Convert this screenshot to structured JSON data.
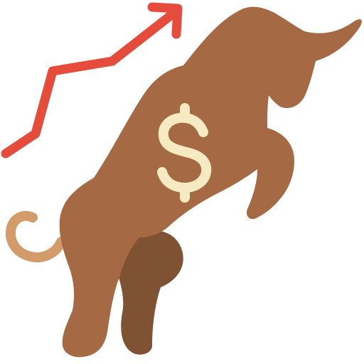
{
  "icon": {
    "name": "bull-market-icon",
    "symbol": "dollar-sign-icon",
    "trend": "trend-up-arrow-icon"
  },
  "colors": {
    "bull_body": "#A56A43",
    "bull_shadow": "#7E5232",
    "tail": "#D39B6A",
    "dollar": "#F6EAC2",
    "arrow": "#E64C3C",
    "background": "#FFFFFF"
  }
}
